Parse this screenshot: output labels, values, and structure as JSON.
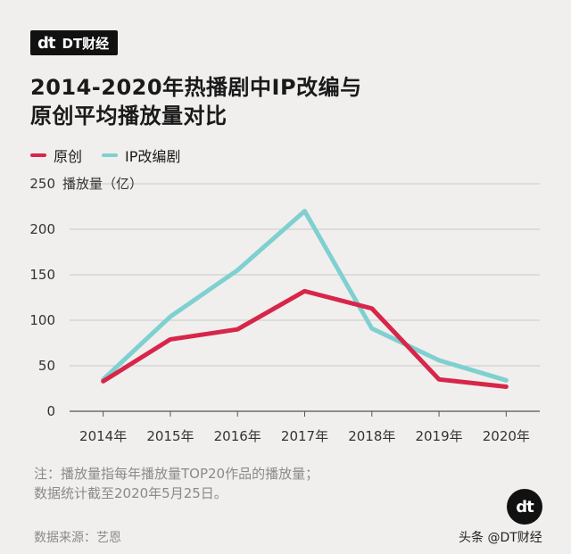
{
  "brand": {
    "mark": "dt",
    "name": "DT财经"
  },
  "title": {
    "line1": "2014-2020年热播剧中IP改编与",
    "line2": "原创平均播放量对比"
  },
  "legend": [
    {
      "label": "原创",
      "color": "#d7264a"
    },
    {
      "label": "IP改编剧",
      "color": "#7fd0d0"
    }
  ],
  "footer": {
    "note1": "注：播放量指每年播放量TOP20作品的播放量；",
    "note2": "数据统计截至2020年5月25日。",
    "source": "数据来源：艺恩",
    "watermark": "头条 @DT财经"
  },
  "chart_data": {
    "type": "line",
    "ylabel": "播放量（亿）",
    "ylim": [
      0,
      250
    ],
    "yticks": [
      "0",
      "50",
      "100",
      "150",
      "200",
      "250"
    ],
    "categories": [
      "2014年",
      "2015年",
      "2016年",
      "2017年",
      "2018年",
      "2019年",
      "2020年"
    ],
    "series": [
      {
        "name": "原创",
        "color": "#d7264a",
        "values": [
          33,
          79,
          90,
          132,
          113,
          35,
          27
        ]
      },
      {
        "name": "IP改编剧",
        "color": "#7fd0d0",
        "values": [
          35,
          104,
          155,
          220,
          91,
          56,
          34
        ]
      }
    ]
  }
}
